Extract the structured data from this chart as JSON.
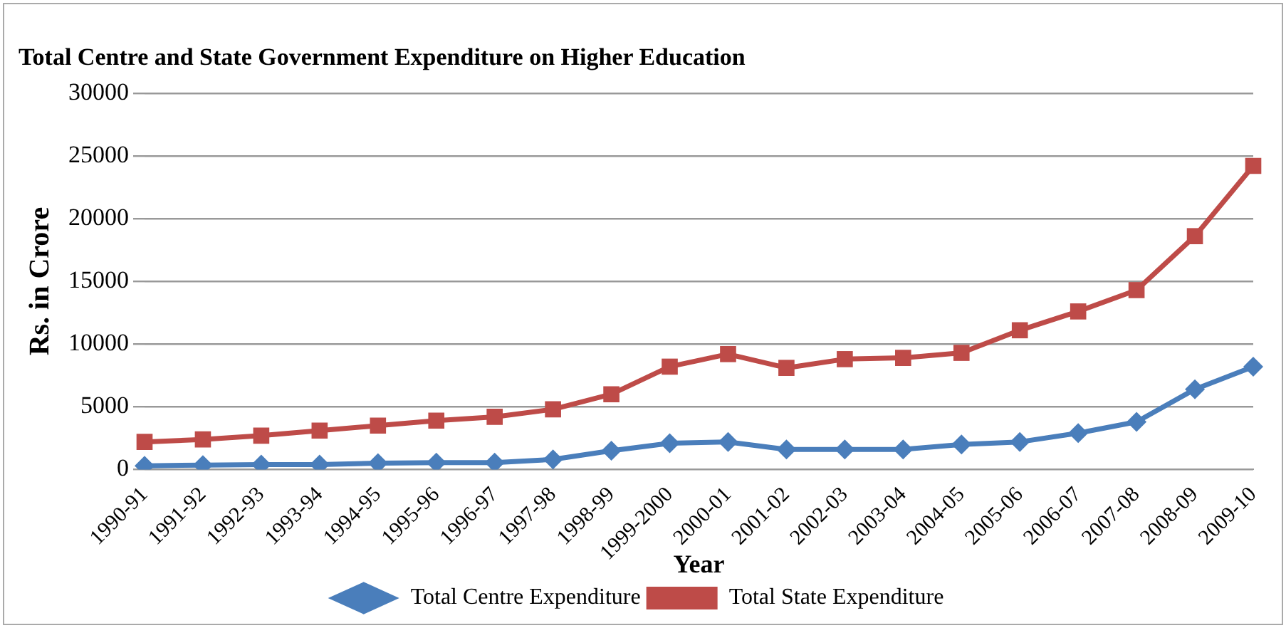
{
  "chart_data": {
    "type": "line",
    "title": "Total Centre and State Government Expenditure on Higher Education",
    "xlabel": "Year",
    "ylabel": "Rs. in Crore",
    "categories": [
      "1990-91",
      "1991-92",
      "1992-93",
      "1993-94",
      "1994-95",
      "1995-96",
      "1996-97",
      "1997-98",
      "1998-99",
      "1999-2000",
      "2000-01",
      "2001-02",
      "2002-03",
      "2003-04",
      "2004-05",
      "2005-06",
      "2006-07",
      "2007-08",
      "2008-09",
      "2009-10"
    ],
    "series": [
      {
        "name": "Total Centre Expenditure",
        "color": "#4a7ebb",
        "marker": "diamond",
        "values": [
          300,
          350,
          400,
          400,
          500,
          550,
          550,
          800,
          1500,
          2100,
          2200,
          1600,
          1600,
          1600,
          2000,
          2200,
          2900,
          3800,
          6400,
          8200
        ]
      },
      {
        "name": "Total State Expenditure",
        "color": "#be4b48",
        "marker": "square",
        "values": [
          2200,
          2400,
          2700,
          3100,
          3500,
          3900,
          4200,
          4800,
          6000,
          8200,
          9200,
          8100,
          8800,
          8900,
          9300,
          11100,
          12600,
          14300,
          18600,
          24200
        ]
      }
    ],
    "ylim": [
      0,
      30000
    ],
    "yticks": [
      0,
      5000,
      10000,
      15000,
      20000,
      25000,
      30000
    ],
    "grid": "y",
    "legend": "bottom"
  }
}
